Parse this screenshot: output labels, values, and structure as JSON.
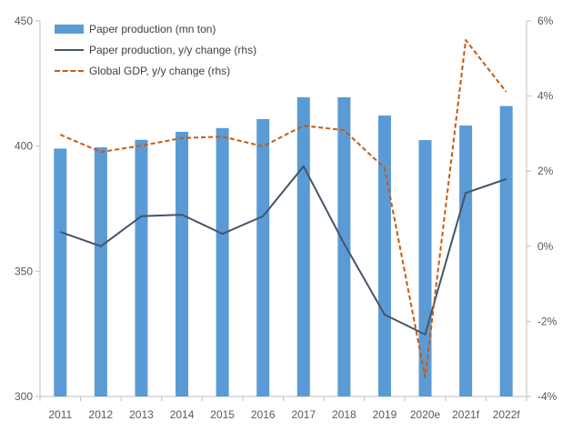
{
  "chart_data": {
    "type": "bar+line",
    "categories": [
      "2011",
      "2012",
      "2013",
      "2014",
      "2015",
      "2016",
      "2017",
      "2018",
      "2019",
      "2020e",
      "2021f",
      "2022f"
    ],
    "left_axis": {
      "ylim": [
        300,
        450
      ],
      "ticks": [
        "300",
        "350",
        "400",
        "450"
      ],
      "tick_values": [
        300,
        350,
        400,
        450
      ]
    },
    "right_axis": {
      "ylim": [
        -4,
        6
      ],
      "ticks": [
        "-4%",
        "-2%",
        "0%",
        "2%",
        "4%",
        "6%"
      ],
      "tick_values": [
        -4,
        -2,
        0,
        2,
        4,
        6
      ]
    },
    "series": [
      {
        "name": "Paper production (mn ton)",
        "type": "bar",
        "axis": "left",
        "color": "#5b9bd5",
        "values": [
          399,
          399.5,
          402.5,
          405.7,
          407.2,
          410.8,
          419.5,
          419.5,
          412.2,
          402.4,
          408.2,
          416
        ]
      },
      {
        "name": "Paper production, y/y change (rhs)",
        "type": "line",
        "axis": "right",
        "color": "#44546a",
        "values": [
          0.38,
          0.0,
          0.8,
          0.84,
          0.33,
          0.8,
          2.13,
          0.07,
          -1.82,
          -2.35,
          1.42,
          1.79
        ]
      },
      {
        "name": "Global GDP, y/y change (rhs)",
        "type": "line-dashed",
        "axis": "right",
        "color": "#c55a11",
        "values": [
          2.97,
          2.51,
          2.68,
          2.88,
          2.92,
          2.66,
          3.21,
          3.09,
          2.08,
          -3.49,
          5.49,
          4.11
        ]
      }
    ],
    "legend": "top-left",
    "grid": false
  }
}
